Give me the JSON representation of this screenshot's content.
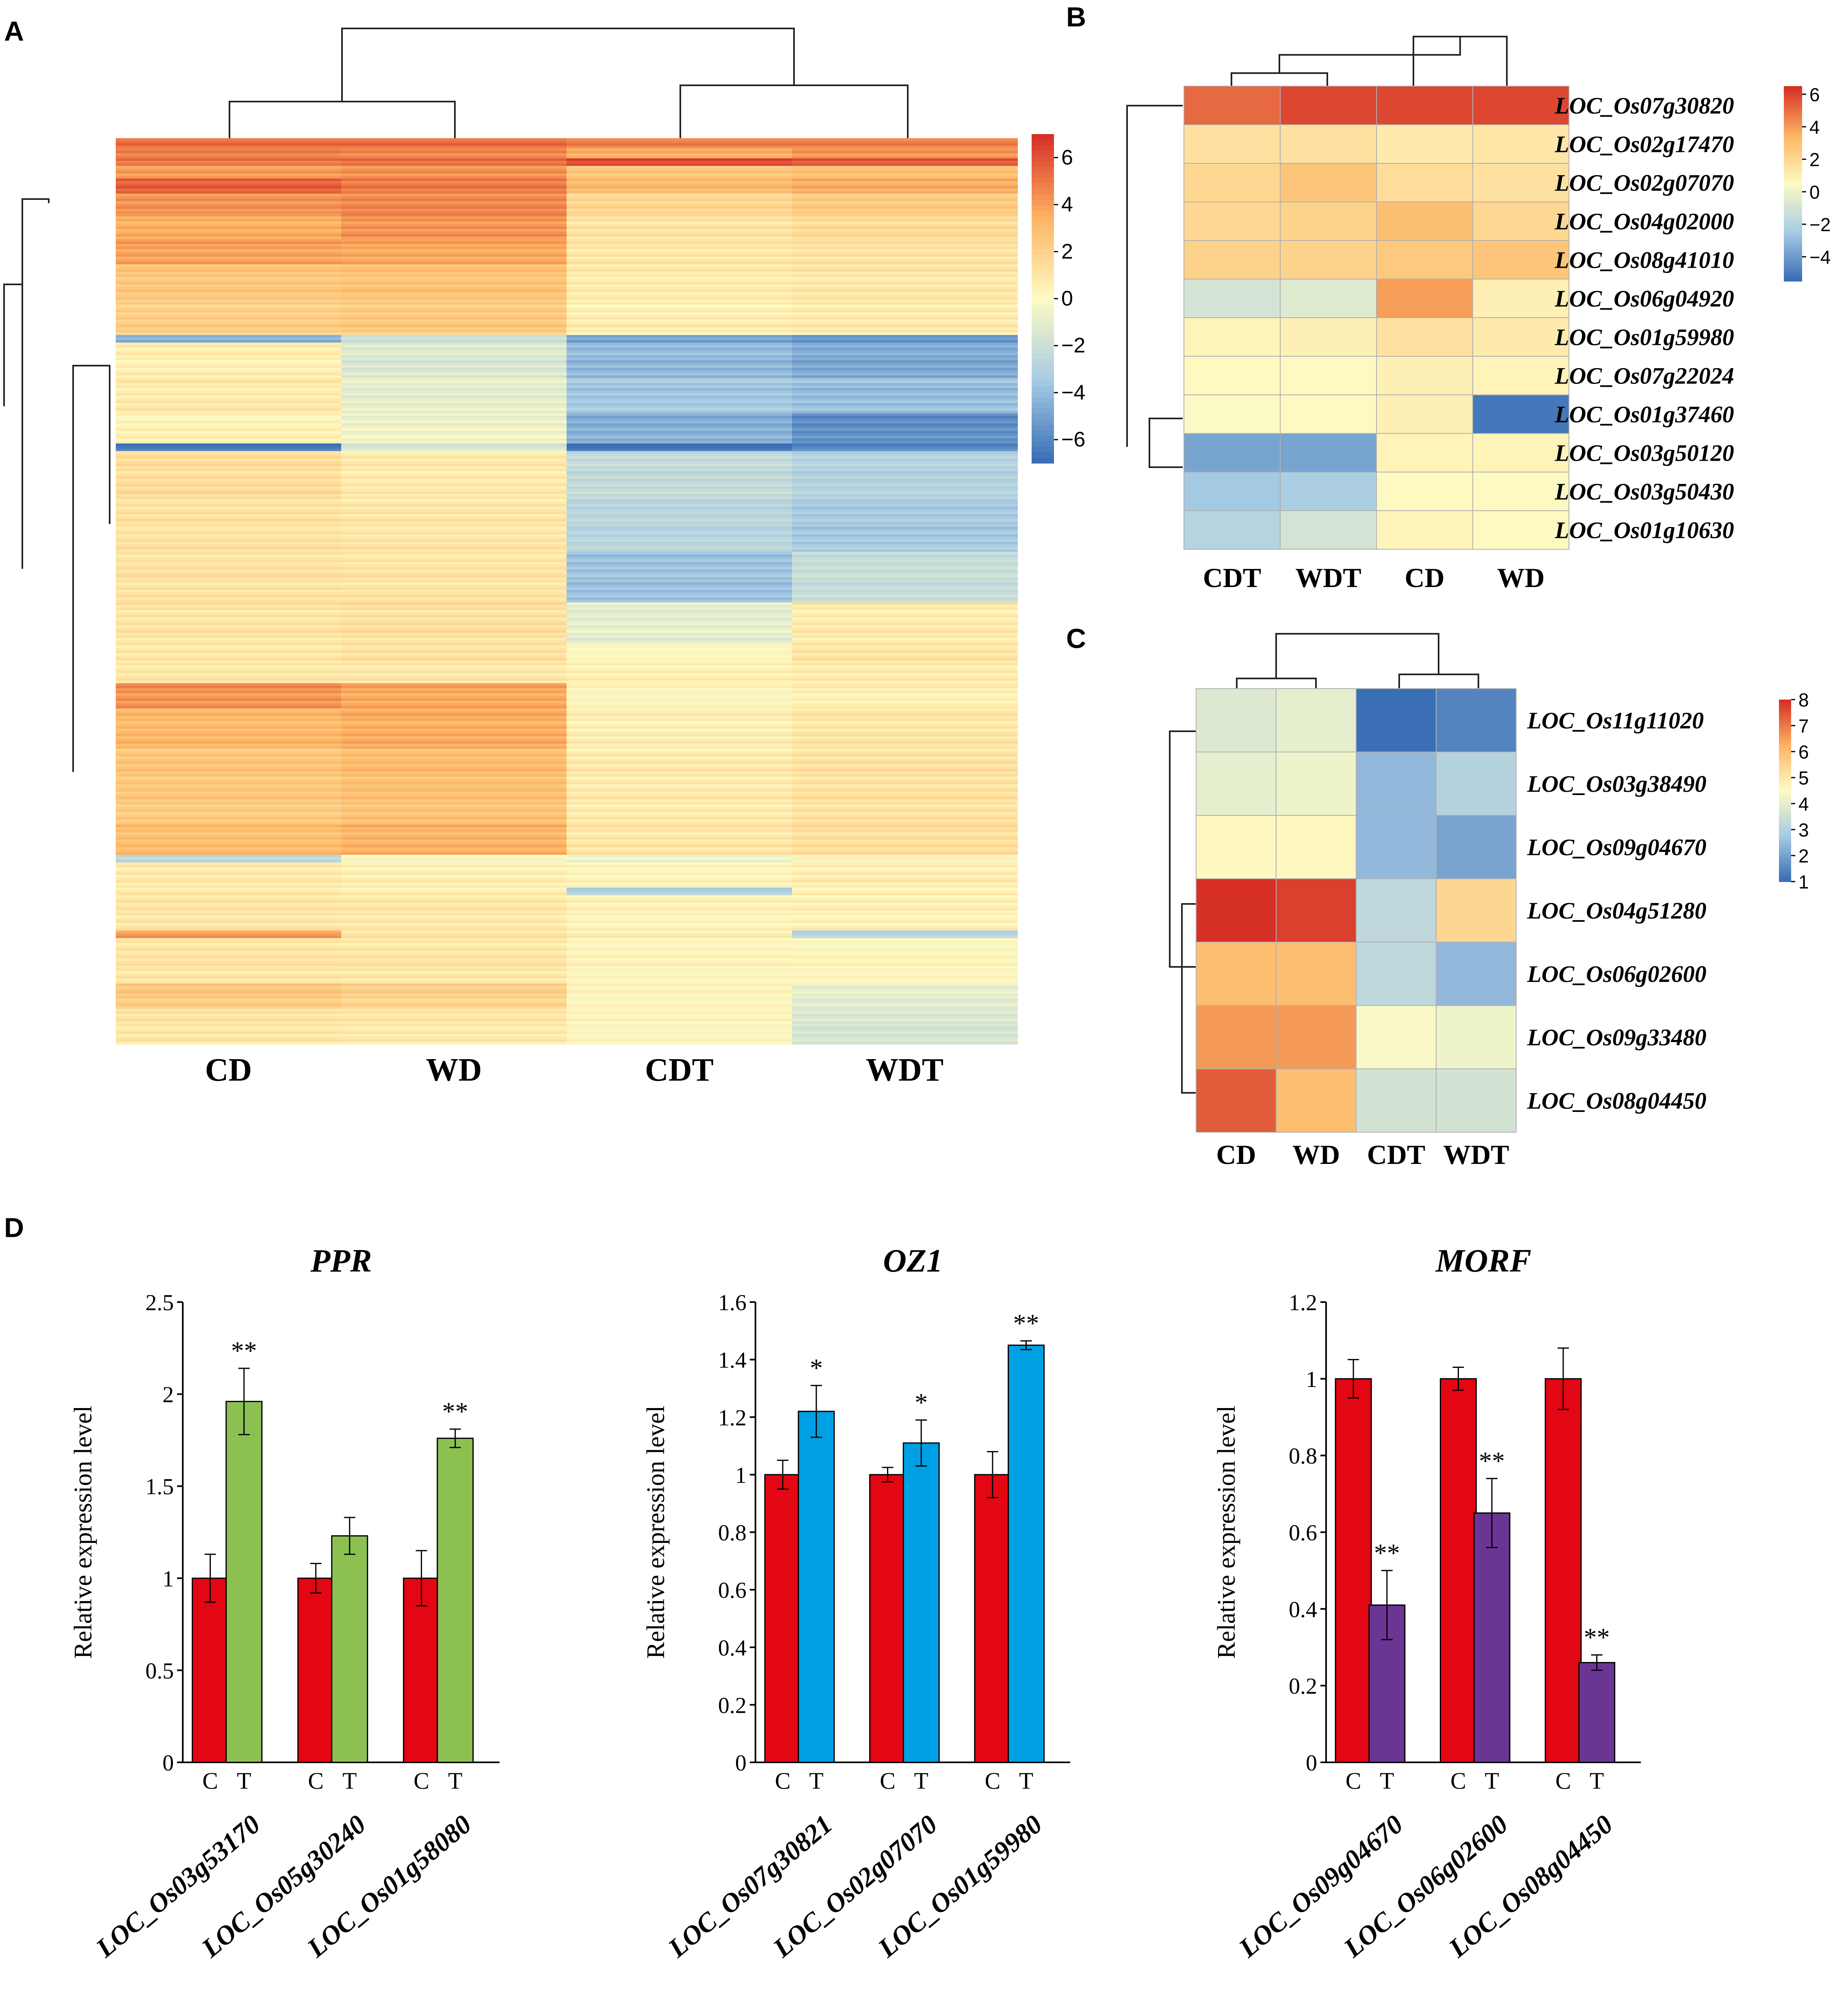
{
  "panels": {
    "A": "A",
    "B": "B",
    "C": "C",
    "D": "D"
  },
  "colors": {
    "control_bar": "#e30613",
    "ppr_bar": "#8cc152",
    "oz1_bar": "#00a0e4",
    "morf_bar": "#6b3594",
    "heat_low": "#3a6fb5",
    "heat_mid": "#fefbc4",
    "heat_high": "#d73027"
  },
  "chart_data": [
    {
      "id": "A",
      "type": "heatmap",
      "title": "",
      "samples": [
        "CD",
        "WD",
        "CDT",
        "WDT"
      ],
      "colorbar": {
        "ticks": [
          6,
          4,
          2,
          0,
          -2,
          -4,
          -6
        ],
        "tick_labels": [
          "6",
          "4",
          "2",
          "0",
          "−2",
          "−4",
          "−6"
        ],
        "range": [
          -7,
          7
        ]
      },
      "rows": [
        {
          "n": 4,
          "v": [
            5.5,
            5.5,
            5,
            5
          ]
        },
        {
          "n": 4,
          "v": [
            4.8,
            4.6,
            3.5,
            4.2
          ]
        },
        {
          "n": 3,
          "v": [
            5.0,
            5.2,
            6.2,
            5.8
          ]
        },
        {
          "n": 5,
          "v": [
            4.2,
            4.5,
            2.6,
            3.0
          ]
        },
        {
          "n": 6,
          "v": [
            5.6,
            4.9,
            3.0,
            3.5
          ]
        },
        {
          "n": 8,
          "v": [
            4.4,
            4.7,
            1.8,
            2.4
          ]
        },
        {
          "n": 10,
          "v": [
            3.6,
            4.4,
            1.2,
            1.6
          ]
        },
        {
          "n": 10,
          "v": [
            4.0,
            3.8,
            1.0,
            1.2
          ]
        },
        {
          "n": 12,
          "v": [
            2.6,
            2.8,
            0.8,
            1.0
          ]
        },
        {
          "n": 16,
          "v": [
            2.2,
            2.4,
            0.6,
            0.8
          ]
        },
        {
          "n": 3,
          "v": [
            -4.5,
            -2,
            -5,
            -5.5
          ]
        },
        {
          "n": 14,
          "v": [
            0.6,
            -1.4,
            -4.2,
            -4.8
          ]
        },
        {
          "n": 14,
          "v": [
            0.8,
            -1.0,
            -3.6,
            -4.0
          ]
        },
        {
          "n": 12,
          "v": [
            0.4,
            -0.6,
            -4.6,
            -5.8
          ]
        },
        {
          "n": 3,
          "v": [
            -6.5,
            -1.5,
            -6.8,
            -6.0
          ]
        },
        {
          "n": 20,
          "v": [
            1.4,
            0.8,
            -2.4,
            -3.0
          ]
        },
        {
          "n": 20,
          "v": [
            1.2,
            1.0,
            -2.8,
            -3.5
          ]
        },
        {
          "n": 20,
          "v": [
            1.2,
            1.1,
            -3.8,
            -2.2
          ]
        },
        {
          "n": 16,
          "v": [
            1.1,
            1.3,
            -1.0,
            0.8
          ]
        },
        {
          "n": 8,
          "v": [
            0.9,
            1.2,
            0.0,
            1.0
          ]
        },
        {
          "n": 8,
          "v": [
            1.0,
            1.0,
            0.6,
            0.8
          ]
        },
        {
          "n": 10,
          "v": [
            4.4,
            3.8,
            0.2,
            0.6
          ]
        },
        {
          "n": 16,
          "v": [
            3.2,
            3.6,
            0.6,
            1.0
          ]
        },
        {
          "n": 16,
          "v": [
            2.6,
            3.0,
            0.8,
            1.2
          ]
        },
        {
          "n": 14,
          "v": [
            2.4,
            2.8,
            0.8,
            1.2
          ]
        },
        {
          "n": 12,
          "v": [
            3.0,
            3.4,
            1.0,
            1.4
          ]
        },
        {
          "n": 3,
          "v": [
            -2.5,
            0.2,
            -0.5,
            0.4
          ]
        },
        {
          "n": 10,
          "v": [
            0.8,
            0.5,
            0.2,
            0.6
          ]
        },
        {
          "n": 3,
          "v": [
            1.0,
            0.8,
            -3.0,
            0.6
          ]
        },
        {
          "n": 14,
          "v": [
            1.0,
            0.9,
            0.4,
            0.5
          ]
        },
        {
          "n": 3,
          "v": [
            4.0,
            1.0,
            0.5,
            -3.0
          ]
        },
        {
          "n": 18,
          "v": [
            1.1,
            1.0,
            0.3,
            0.2
          ]
        },
        {
          "n": 10,
          "v": [
            2.4,
            2.0,
            0.2,
            -1.0
          ]
        },
        {
          "n": 14,
          "v": [
            1.0,
            0.9,
            0.2,
            -1.5
          ]
        }
      ]
    },
    {
      "id": "B",
      "type": "heatmap",
      "title": "",
      "samples": [
        "CDT",
        "WDT",
        "CD",
        "WD"
      ],
      "genes": [
        "LOC_Os07g30820",
        "LOC_Os02g17470",
        "LOC_Os02g07070",
        "LOC_Os04g02000",
        "LOC_Os08g41010",
        "LOC_Os06g04920",
        "LOC_Os01g59980",
        "LOC_Os07g22024",
        "LOC_Os01g37460",
        "LOC_Os03g50120",
        "LOC_Os03g50430",
        "LOC_Os01g10630"
      ],
      "values": [
        [
          5.2,
          6.0,
          6.0,
          6.0
        ],
        [
          1.6,
          1.6,
          1.2,
          1.4
        ],
        [
          2.0,
          2.8,
          1.8,
          1.6
        ],
        [
          2.0,
          2.2,
          3.0,
          2.0
        ],
        [
          2.2,
          2.2,
          2.6,
          2.8
        ],
        [
          -1.0,
          -0.6,
          4.0,
          1.0
        ],
        [
          0.8,
          1.0,
          1.6,
          1.2
        ],
        [
          0.6,
          0.6,
          1.0,
          0.8
        ],
        [
          0.4,
          0.6,
          1.0,
          -5.2
        ],
        [
          -3.8,
          -3.8,
          0.8,
          0.8
        ],
        [
          -2.6,
          -2.4,
          0.6,
          0.6
        ],
        [
          -2.0,
          -1.0,
          0.8,
          0.6
        ]
      ],
      "colorbar": {
        "ticks": [
          6,
          4,
          2,
          0,
          -2,
          -4
        ],
        "tick_labels": [
          "6",
          "4",
          "2",
          "0",
          "−2",
          "−4"
        ],
        "range": [
          -5.5,
          6.5
        ]
      }
    },
    {
      "id": "C",
      "type": "heatmap",
      "title": "",
      "samples": [
        "CD",
        "WD",
        "CDT",
        "WDT"
      ],
      "genes": [
        "LOC_Os11g11020",
        "LOC_Os03g38490",
        "LOC_Os09g04670",
        "LOC_Os04g51280",
        "LOC_Os06g02600",
        "LOC_Os09g33480",
        "LOC_Os08g04450"
      ],
      "values": [
        [
          3.8,
          4.0,
          1.0,
          1.4
        ],
        [
          4.0,
          4.2,
          2.4,
          3.0
        ],
        [
          4.6,
          4.6,
          2.4,
          2.0
        ],
        [
          8.0,
          7.8,
          3.2,
          5.4
        ],
        [
          6.0,
          6.0,
          3.2,
          2.4
        ],
        [
          6.6,
          6.6,
          4.4,
          4.2
        ],
        [
          7.4,
          6.0,
          3.6,
          3.6
        ]
      ],
      "colorbar": {
        "ticks": [
          8,
          7,
          6,
          5,
          4,
          3,
          2,
          1
        ],
        "tick_labels": [
          "8",
          "7",
          "6",
          "5",
          "4",
          "3",
          "2",
          "1"
        ],
        "range": [
          1,
          8
        ]
      }
    },
    {
      "id": "D1",
      "type": "bar",
      "title": "PPR",
      "ylabel": "Relative expression level",
      "ylim": [
        0,
        2.5
      ],
      "yticks": [
        "0",
        "0.5",
        "1",
        "1.5",
        "2",
        "2.5"
      ],
      "ytick_values": [
        0,
        0.5,
        1,
        1.5,
        2,
        2.5
      ],
      "categories": [
        "LOC_Os03g53170",
        "LOC_Os05g30240",
        "LOC_Os01g58080"
      ],
      "bar_labels": [
        "C",
        "T"
      ],
      "series": [
        {
          "name": "C",
          "values": [
            1.0,
            1.0,
            1.0
          ],
          "errors": [
            0.13,
            0.08,
            0.15
          ],
          "sig": [
            "",
            "",
            ""
          ]
        },
        {
          "name": "T",
          "values": [
            1.96,
            1.23,
            1.76
          ],
          "errors": [
            0.18,
            0.1,
            0.05
          ],
          "sig": [
            "**",
            "",
            "**"
          ]
        }
      ]
    },
    {
      "id": "D2",
      "type": "bar",
      "title": "OZ1",
      "ylabel": "Relative expression level",
      "ylim": [
        0,
        1.6
      ],
      "yticks": [
        "0",
        "0.2",
        "0.4",
        "0.6",
        "0.8",
        "1",
        "1.2",
        "1.4",
        "1.6"
      ],
      "ytick_values": [
        0,
        0.2,
        0.4,
        0.6,
        0.8,
        1,
        1.2,
        1.4,
        1.6
      ],
      "categories": [
        "LOC_Os07g30821",
        "LOC_Os02g07070",
        "LOC_Os01g59980"
      ],
      "bar_labels": [
        "C",
        "T"
      ],
      "series": [
        {
          "name": "C",
          "values": [
            1.0,
            1.0,
            1.0
          ],
          "errors": [
            0.05,
            0.025,
            0.08
          ],
          "sig": [
            "",
            "",
            ""
          ]
        },
        {
          "name": "T",
          "values": [
            1.22,
            1.11,
            1.45
          ],
          "errors": [
            0.09,
            0.08,
            0.015
          ],
          "sig": [
            "*",
            "*",
            "**"
          ]
        }
      ]
    },
    {
      "id": "D3",
      "type": "bar",
      "title": "MORF",
      "ylabel": "Relative expression level",
      "ylim": [
        0,
        1.2
      ],
      "yticks": [
        "0",
        "0.2",
        "0.4",
        "0.6",
        "0.8",
        "1",
        "1.2"
      ],
      "ytick_values": [
        0,
        0.2,
        0.4,
        0.6,
        0.8,
        1,
        1.2
      ],
      "categories": [
        "LOC_Os09g04670",
        "LOC_Os06g02600",
        "LOC_Os08g04450"
      ],
      "bar_labels": [
        "C",
        "T"
      ],
      "series": [
        {
          "name": "C",
          "values": [
            1.0,
            1.0,
            1.0
          ],
          "errors": [
            0.05,
            0.03,
            0.08
          ],
          "sig": [
            "",
            "",
            ""
          ]
        },
        {
          "name": "T",
          "values": [
            0.41,
            0.65,
            0.26
          ],
          "errors": [
            0.09,
            0.09,
            0.02
          ],
          "sig": [
            "**",
            "**",
            "**"
          ]
        }
      ]
    }
  ]
}
